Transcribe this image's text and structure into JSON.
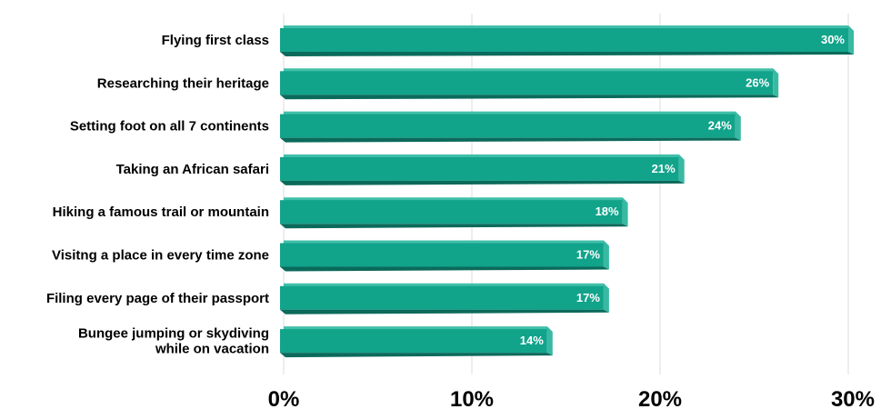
{
  "chart_data": {
    "type": "bar",
    "orientation": "horizontal",
    "categories": [
      [
        "Flying first class"
      ],
      [
        "Researching their heritage"
      ],
      [
        "Setting foot on all 7 continents"
      ],
      [
        "Taking an African safari"
      ],
      [
        "Hiking a famous trail or mountain"
      ],
      [
        "Visitng a place in every time zone"
      ],
      [
        "Filing every page of their passport"
      ],
      [
        "Bungee jumping or skydiving",
        "while on vacation"
      ]
    ],
    "values": [
      30,
      26,
      24,
      21,
      18,
      17,
      17,
      14
    ],
    "value_labels": [
      "30%",
      "26%",
      "24%",
      "21%",
      "18%",
      "17%",
      "17%",
      "14%"
    ],
    "x_ticks": [
      0,
      10,
      20,
      30
    ],
    "x_tick_labels": [
      "0%",
      "10%",
      "20%",
      "30%"
    ],
    "xlim": [
      0,
      30
    ],
    "grid": true,
    "title": "",
    "xlabel": "",
    "ylabel": "",
    "colors": {
      "bar_face": "#12a38b",
      "bar_top": "#41bfa9",
      "bar_bottom": "#0b6a5b",
      "bar_cap": "#39b9a3",
      "grid": "#dddddd"
    }
  }
}
